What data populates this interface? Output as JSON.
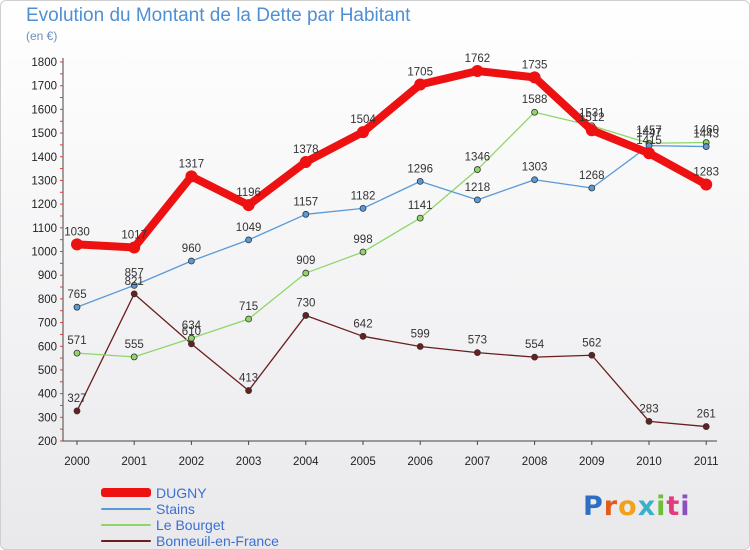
{
  "title": "Evolution du Montant de la Dette par Habitant",
  "subtitle": "(en €)",
  "colors": {
    "DUGNY": "#ee1111",
    "Stains": "#5a9ad6",
    "Le Bourget": "#8fd66a",
    "Bonneuil-en-France": "#6a1e1e"
  },
  "logo": {
    "text": "Proxiti",
    "letter_colors": [
      "#2f6fc1",
      "#e25a1c",
      "#f0a21a",
      "#3bb0c9",
      "#6cbf3a",
      "#e23a7a",
      "#8c4fc0"
    ]
  },
  "chart_data": {
    "type": "line",
    "title": "Evolution du Montant de la Dette par Habitant",
    "ylabel": "(en €)",
    "xlabel": "",
    "x": [
      "2000",
      "2001",
      "2002",
      "2003",
      "2004",
      "2005",
      "2006",
      "2007",
      "2008",
      "2009",
      "2010",
      "2011"
    ],
    "ylim": [
      200,
      1800
    ],
    "yticks": [
      200,
      300,
      400,
      500,
      600,
      700,
      800,
      900,
      1000,
      1100,
      1200,
      1300,
      1400,
      1500,
      1600,
      1700,
      1800
    ],
    "grid": false,
    "legend": "bottom-left",
    "series": [
      {
        "name": "DUGNY",
        "values": [
          1030,
          1017,
          1317,
          1196,
          1378,
          1504,
          1705,
          1762,
          1735,
          1512,
          1415,
          1283
        ],
        "labels": [
          "1030",
          "1017",
          "1317",
          "1196",
          "1378",
          "1504",
          "1705",
          "1762",
          "1735",
          "1512",
          "1415",
          "1283"
        ]
      },
      {
        "name": "Stains",
        "values": [
          765,
          857,
          960,
          1049,
          1157,
          1182,
          1296,
          1218,
          1303,
          1268,
          1447,
          1443
        ],
        "labels": [
          "765",
          "857",
          "960",
          "1049",
          "1157",
          "1182",
          "1296",
          "1218",
          "1303",
          "1268",
          "1447",
          "1443"
        ]
      },
      {
        "name": "Le Bourget",
        "values": [
          571,
          555,
          634,
          715,
          909,
          998,
          1141,
          1346,
          1588,
          1531,
          1457,
          1460
        ],
        "labels": [
          "571",
          "555",
          "634",
          "715",
          "909",
          "998",
          "1141",
          "1346",
          "1588",
          "1531",
          "1457",
          "1460"
        ]
      },
      {
        "name": "Bonneuil-en-France",
        "values": [
          327,
          821,
          610,
          413,
          730,
          642,
          599,
          573,
          554,
          562,
          283,
          261
        ],
        "labels": [
          "327",
          "821",
          "610",
          "413",
          "730",
          "642",
          "599",
          "573",
          "554",
          "562",
          "283",
          "261"
        ]
      }
    ]
  }
}
